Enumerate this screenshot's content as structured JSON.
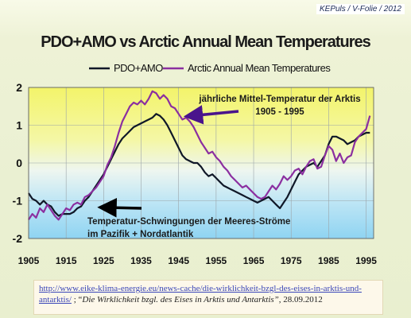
{
  "header": {
    "credit": "KEPuls / V-Folie / 2012"
  },
  "footer": {
    "link_text": "http://www.eike-klima-energie.eu/news-cache/die-wirklichkeit-bzgl-des-eises-in-arktis-und-antarktis/",
    "separator": " ; “",
    "source_title": "Die Wirklichkeit bzgl. des Eises in Arktis und Antarktis”",
    "date": ", 28.09.2012"
  },
  "chart_data": {
    "type": "line",
    "title": "PDO+AMO vs Arctic Annual Mean Temperatures",
    "xlim": [
      1905,
      1997
    ],
    "ylim": [
      -2,
      2
    ],
    "x_ticks": [
      1905,
      1915,
      1925,
      1935,
      1945,
      1955,
      1965,
      1975,
      1985,
      1995
    ],
    "y_ticks": [
      2,
      1,
      0,
      -1,
      -2
    ],
    "grid": true,
    "legend_position": "top",
    "annotations": [
      {
        "text_lines": [
          "jährliche Mittel-Temperatur der Arktis",
          "1905 - 1995"
        ],
        "arrow_to": [
          1946.5,
          1.2
        ],
        "color": "#4a148c"
      },
      {
        "text_lines": [
          "Temperatur-Schwingungen der Meeres-Ströme",
          "im Pazifik + Nordatlantik"
        ],
        "arrow_to": [
          1923.5,
          -1.05
        ],
        "color": "#000000"
      }
    ],
    "series": [
      {
        "name": "PDO+AMO",
        "color": "#101828",
        "x": [
          1905,
          1906,
          1907,
          1908,
          1909,
          1910,
          1911,
          1912,
          1913,
          1914,
          1915,
          1916,
          1917,
          1918,
          1919,
          1920,
          1921,
          1922,
          1923,
          1924,
          1925,
          1926,
          1927,
          1928,
          1929,
          1930,
          1931,
          1932,
          1933,
          1934,
          1935,
          1936,
          1937,
          1938,
          1939,
          1940,
          1941,
          1942,
          1943,
          1944,
          1945,
          1946,
          1947,
          1948,
          1949,
          1950,
          1951,
          1952,
          1953,
          1954,
          1955,
          1956,
          1957,
          1958,
          1959,
          1960,
          1961,
          1962,
          1963,
          1964,
          1965,
          1966,
          1967,
          1968,
          1969,
          1970,
          1971,
          1972,
          1973,
          1974,
          1975,
          1976,
          1977,
          1978,
          1979,
          1980,
          1981,
          1982,
          1983,
          1984,
          1985,
          1986,
          1987,
          1988,
          1989,
          1990,
          1991,
          1992,
          1993,
          1994,
          1995,
          1996
        ],
        "values": [
          -0.8,
          -0.95,
          -1.0,
          -1.1,
          -1.0,
          -1.1,
          -1.15,
          -1.3,
          -1.4,
          -1.35,
          -1.35,
          -1.35,
          -1.3,
          -1.2,
          -1.15,
          -1.0,
          -0.9,
          -0.75,
          -0.6,
          -0.45,
          -0.3,
          -0.1,
          0.1,
          0.3,
          0.5,
          0.65,
          0.75,
          0.85,
          0.95,
          1.0,
          1.05,
          1.1,
          1.15,
          1.2,
          1.3,
          1.25,
          1.15,
          1.0,
          0.8,
          0.6,
          0.4,
          0.2,
          0.1,
          0.05,
          0.0,
          0.0,
          -0.1,
          -0.25,
          -0.35,
          -0.3,
          -0.4,
          -0.5,
          -0.6,
          -0.65,
          -0.7,
          -0.75,
          -0.8,
          -0.85,
          -0.9,
          -0.95,
          -1.0,
          -1.05,
          -1.0,
          -0.95,
          -0.9,
          -1.0,
          -1.1,
          -1.2,
          -1.05,
          -0.9,
          -0.7,
          -0.5,
          -0.3,
          -0.2,
          -0.1,
          -0.05,
          0.0,
          -0.1,
          0.05,
          0.2,
          0.5,
          0.7,
          0.7,
          0.65,
          0.6,
          0.5,
          0.55,
          0.6,
          0.7,
          0.75,
          0.8,
          0.8
        ]
      },
      {
        "name": "Arctic Annual Mean Temperatures",
        "color": "#8b2fa0",
        "x": [
          1905,
          1906,
          1907,
          1908,
          1909,
          1910,
          1911,
          1912,
          1913,
          1914,
          1915,
          1916,
          1917,
          1918,
          1919,
          1920,
          1921,
          1922,
          1923,
          1924,
          1925,
          1926,
          1927,
          1928,
          1929,
          1930,
          1931,
          1932,
          1933,
          1934,
          1935,
          1936,
          1937,
          1938,
          1939,
          1940,
          1941,
          1942,
          1943,
          1944,
          1945,
          1946,
          1947,
          1948,
          1949,
          1950,
          1951,
          1952,
          1953,
          1954,
          1955,
          1956,
          1957,
          1958,
          1959,
          1960,
          1961,
          1962,
          1963,
          1964,
          1965,
          1966,
          1967,
          1968,
          1969,
          1970,
          1971,
          1972,
          1973,
          1974,
          1975,
          1976,
          1977,
          1978,
          1979,
          1980,
          1981,
          1982,
          1983,
          1984,
          1985,
          1986,
          1987,
          1988,
          1989,
          1990,
          1991,
          1992,
          1993,
          1994,
          1995,
          1996
        ],
        "values": [
          -1.5,
          -1.35,
          -1.45,
          -1.2,
          -1.3,
          -1.1,
          -1.25,
          -1.4,
          -1.5,
          -1.35,
          -1.2,
          -1.25,
          -1.1,
          -1.05,
          -1.1,
          -0.9,
          -0.85,
          -0.75,
          -0.65,
          -0.5,
          -0.35,
          -0.05,
          0.15,
          0.45,
          0.8,
          1.1,
          1.3,
          1.5,
          1.6,
          1.55,
          1.65,
          1.55,
          1.7,
          1.9,
          1.85,
          1.7,
          1.8,
          1.7,
          1.5,
          1.45,
          1.3,
          1.15,
          1.2,
          1.1,
          0.95,
          0.75,
          0.55,
          0.4,
          0.25,
          0.3,
          0.15,
          0.05,
          -0.1,
          -0.2,
          -0.35,
          -0.45,
          -0.55,
          -0.65,
          -0.6,
          -0.7,
          -0.8,
          -0.9,
          -0.95,
          -0.9,
          -0.75,
          -0.6,
          -0.7,
          -0.55,
          -0.35,
          -0.45,
          -0.35,
          -0.2,
          -0.15,
          -0.3,
          -0.1,
          0.05,
          0.1,
          -0.15,
          -0.1,
          0.2,
          0.45,
          0.35,
          0.05,
          0.25,
          0.0,
          0.15,
          0.2,
          0.55,
          0.7,
          0.8,
          0.9,
          1.25
        ]
      }
    ]
  }
}
